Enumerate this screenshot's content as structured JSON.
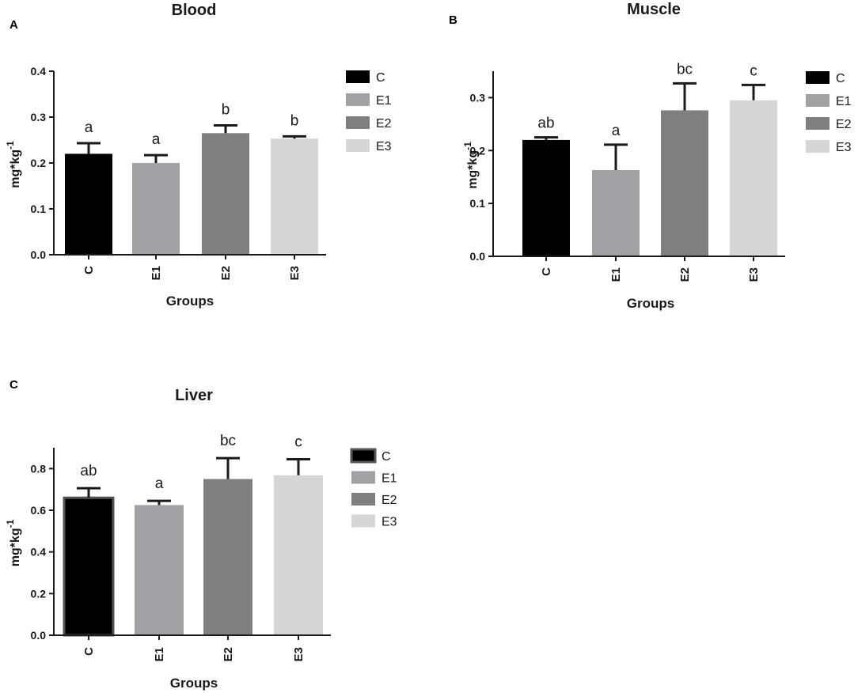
{
  "figure": {
    "panels": [
      "A",
      "B",
      "C"
    ]
  },
  "colors": {
    "C": "#000000",
    "E1": "#a1a1a5",
    "E2": "#7f7f7f",
    "E3": "#d6d6d6",
    "axis": "#1a1a1a"
  },
  "chart_data": [
    {
      "id": "blood",
      "panel": "A",
      "type": "bar",
      "title": "Blood",
      "xlabel": "Groups",
      "ylabel_base": "mg*kg",
      "ylabel_exp": "-1",
      "categories": [
        "C",
        "E1",
        "E2",
        "E3"
      ],
      "values": [
        0.22,
        0.2,
        0.265,
        0.253
      ],
      "errors": [
        0.023,
        0.017,
        0.017,
        0.005
      ],
      "significance": [
        "a",
        "a",
        "b",
        "b"
      ],
      "ylim": [
        0,
        0.4
      ],
      "yticks": [
        0.0,
        0.1,
        0.2,
        0.3,
        0.4
      ],
      "ytick_labels": [
        "0.0",
        "0.1",
        "0.2",
        "0.3",
        "0.4"
      ],
      "legend": [
        "C",
        "E1",
        "E2",
        "E3"
      ],
      "legend_position": "right"
    },
    {
      "id": "muscle",
      "panel": "B",
      "type": "bar",
      "title": "Muscle",
      "xlabel": "Groups",
      "ylabel_base": "mg*kg",
      "ylabel_exp": "-1",
      "categories": [
        "C",
        "E1",
        "E2",
        "E3"
      ],
      "values": [
        0.22,
        0.163,
        0.276,
        0.295
      ],
      "errors": [
        0.005,
        0.048,
        0.051,
        0.029
      ],
      "significance": [
        "ab",
        "a",
        "bc",
        "c"
      ],
      "ylim": [
        0,
        0.35
      ],
      "yticks": [
        0.0,
        0.1,
        0.2,
        0.3
      ],
      "ytick_labels": [
        "0.0",
        "0.1",
        "0.2",
        "0.3"
      ],
      "legend": [
        "C",
        "E1",
        "E2",
        "E3"
      ],
      "legend_position": "right"
    },
    {
      "id": "liver",
      "panel": "C",
      "type": "bar",
      "title": "Liver",
      "xlabel": "Groups",
      "ylabel_base": "mg*kg",
      "ylabel_exp": "-1",
      "categories": [
        "C",
        "E1",
        "E2",
        "E3"
      ],
      "values": [
        0.66,
        0.625,
        0.75,
        0.768
      ],
      "errors": [
        0.046,
        0.02,
        0.1,
        0.077
      ],
      "significance": [
        "ab",
        "a",
        "bc",
        "c"
      ],
      "ylim": [
        0,
        0.9
      ],
      "yticks": [
        0.0,
        0.2,
        0.4,
        0.6,
        0.8
      ],
      "ytick_labels": [
        "0.0",
        "0.2",
        "0.4",
        "0.6",
        "0.8"
      ],
      "legend": [
        "C",
        "E1",
        "E2",
        "E3"
      ],
      "legend_position": "right"
    }
  ]
}
